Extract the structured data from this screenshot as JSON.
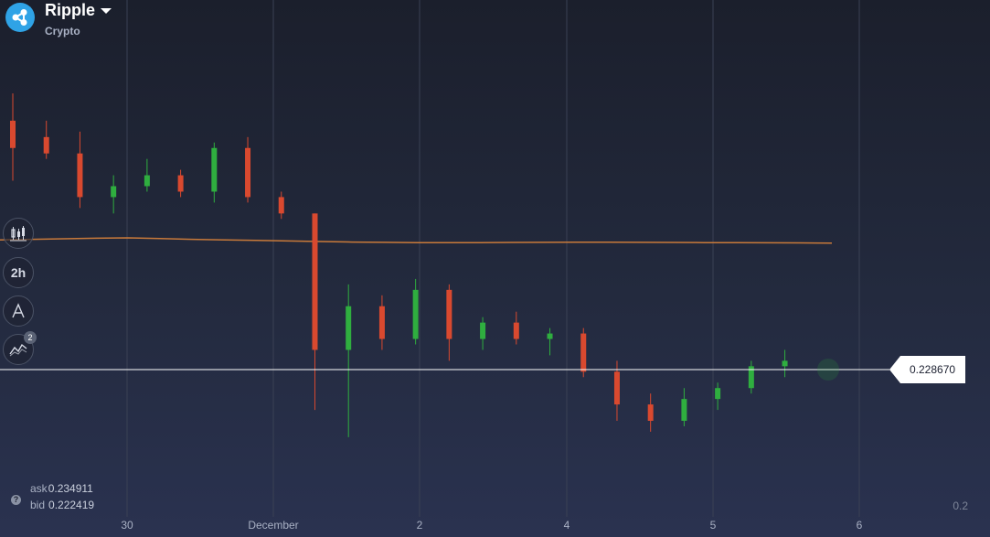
{
  "asset": {
    "name": "Ripple",
    "category": "Crypto",
    "icon": "ripple-logo-icon"
  },
  "toolbar": {
    "chart_type_icon": "candlestick-icon",
    "timeframe": "2h",
    "drawing_icon": "drawing-tools-icon",
    "indicators_icon": "indicators-icon",
    "indicators_count": "2"
  },
  "current_price": "0.228670",
  "quotes": {
    "ask_label": "ask",
    "ask": "0.234911",
    "bid_label": "bid",
    "bid": "0.222419"
  },
  "y_axis_corner_label": "0.2",
  "colors": {
    "up": "#2fae3f",
    "down": "#d9492f",
    "moving_average": "#c97a3a",
    "price_line": "#ffffff",
    "grid": "#3a4154"
  },
  "chart_data": {
    "type": "candlestick",
    "x_tick_labels": [
      "30",
      "December",
      "2",
      "4",
      "5",
      "6"
    ],
    "y_range": [
      0.2,
      0.25
    ],
    "moving_average": [
      0.242,
      0.2425,
      0.243,
      0.2435,
      0.2438,
      0.2432,
      0.2425,
      0.242,
      0.2415,
      0.241,
      0.2405,
      0.24,
      0.2397,
      0.2395,
      0.2395,
      0.2395,
      0.2396,
      0.2397,
      0.2398,
      0.2398,
      0.2397,
      0.2396,
      0.2395,
      0.2394,
      0.2393,
      0.2392,
      0.239
    ],
    "candles": [
      {
        "o": 0.254,
        "h": 0.2565,
        "l": 0.2485,
        "c": 0.2515
      },
      {
        "o": 0.2525,
        "h": 0.254,
        "l": 0.2505,
        "c": 0.251
      },
      {
        "o": 0.251,
        "h": 0.253,
        "l": 0.246,
        "c": 0.247
      },
      {
        "o": 0.247,
        "h": 0.249,
        "l": 0.2455,
        "c": 0.248
      },
      {
        "o": 0.248,
        "h": 0.2505,
        "l": 0.2475,
        "c": 0.249
      },
      {
        "o": 0.249,
        "h": 0.2495,
        "l": 0.247,
        "c": 0.2475
      },
      {
        "o": 0.2475,
        "h": 0.252,
        "l": 0.2465,
        "c": 0.2515
      },
      {
        "o": 0.2515,
        "h": 0.2525,
        "l": 0.2465,
        "c": 0.247
      },
      {
        "o": 0.247,
        "h": 0.2475,
        "l": 0.245,
        "c": 0.2455
      },
      {
        "o": 0.2455,
        "h": 0.2455,
        "l": 0.2275,
        "c": 0.233
      },
      {
        "o": 0.233,
        "h": 0.239,
        "l": 0.225,
        "c": 0.237
      },
      {
        "o": 0.237,
        "h": 0.238,
        "l": 0.233,
        "c": 0.234
      },
      {
        "o": 0.234,
        "h": 0.2395,
        "l": 0.2335,
        "c": 0.2385
      },
      {
        "o": 0.2385,
        "h": 0.239,
        "l": 0.232,
        "c": 0.234
      },
      {
        "o": 0.234,
        "h": 0.236,
        "l": 0.233,
        "c": 0.2355
      },
      {
        "o": 0.2355,
        "h": 0.2365,
        "l": 0.2335,
        "c": 0.234
      },
      {
        "o": 0.234,
        "h": 0.235,
        "l": 0.2325,
        "c": 0.2345
      },
      {
        "o": 0.2345,
        "h": 0.235,
        "l": 0.2305,
        "c": 0.231
      },
      {
        "o": 0.231,
        "h": 0.232,
        "l": 0.2265,
        "c": 0.228
      },
      {
        "o": 0.228,
        "h": 0.229,
        "l": 0.2255,
        "c": 0.2265
      },
      {
        "o": 0.2265,
        "h": 0.2295,
        "l": 0.226,
        "c": 0.2285
      },
      {
        "o": 0.2285,
        "h": 0.23,
        "l": 0.2275,
        "c": 0.2295
      },
      {
        "o": 0.2295,
        "h": 0.232,
        "l": 0.229,
        "c": 0.2315
      },
      {
        "o": 0.2315,
        "h": 0.233,
        "l": 0.2305,
        "c": 0.232
      }
    ]
  }
}
